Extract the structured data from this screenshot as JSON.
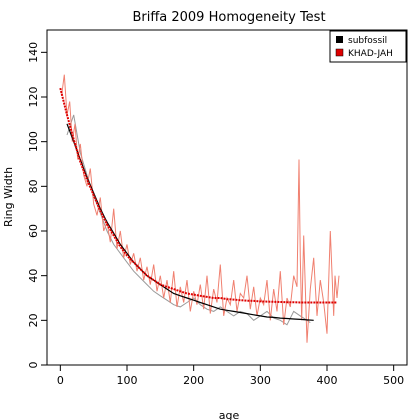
{
  "chart_data": {
    "type": "line",
    "title": "Briffa 2009 Homogeneity Test",
    "xlabel": "age",
    "ylabel": "Ring Width",
    "xlim": [
      -20,
      520
    ],
    "ylim": [
      0,
      150
    ],
    "xticks": [
      0,
      100,
      200,
      300,
      400,
      500
    ],
    "yticks": [
      0,
      20,
      40,
      60,
      80,
      100,
      120,
      140
    ],
    "grid": false,
    "legend": {
      "placement": "top-right"
    },
    "series": [
      {
        "name": "subfossil",
        "color": "#000000",
        "raw_color": "#9a9a9a",
        "raw_x": [
          10,
          20,
          30,
          40,
          50,
          60,
          70,
          80,
          90,
          100,
          110,
          120,
          130,
          140,
          150,
          160,
          170,
          180,
          190,
          200,
          210,
          220,
          230,
          240,
          250,
          260,
          270,
          280,
          290,
          300,
          310,
          320,
          330,
          340,
          350,
          360,
          370,
          375
        ],
        "raw_y": [
          103,
          112,
          95,
          85,
          76,
          68,
          60,
          54,
          50,
          46,
          42,
          39,
          36,
          33,
          31,
          29,
          27,
          26,
          28,
          30,
          27,
          25,
          24,
          26,
          24,
          22,
          24,
          23,
          20,
          22,
          24,
          21,
          20,
          18,
          24,
          22,
          20,
          19
        ],
        "fit_x": [
          10,
          20,
          30,
          40,
          50,
          60,
          70,
          80,
          90,
          100,
          110,
          120,
          130,
          140,
          150,
          160,
          170,
          180,
          190,
          200,
          210,
          220,
          230,
          240,
          250,
          260,
          270,
          280,
          290,
          300,
          310,
          320,
          330,
          340,
          350,
          360,
          370,
          380
        ],
        "fit_y": [
          108,
          100,
          92,
          84,
          77,
          70,
          64,
          59,
          54,
          50,
          46,
          43,
          40,
          38,
          36,
          34,
          32,
          31,
          30,
          29,
          28,
          27,
          26,
          25,
          24.5,
          24,
          23.5,
          23,
          22.5,
          22,
          21.5,
          21.3,
          21,
          20.8,
          20.6,
          20.4,
          20.2,
          20
        ]
      },
      {
        "name": "KHAD-JAH",
        "color": "#dd0000",
        "raw_color": "#f08070",
        "raw_x": [
          2,
          6,
          10,
          14,
          18,
          22,
          26,
          30,
          35,
          40,
          45,
          50,
          55,
          60,
          65,
          70,
          75,
          80,
          85,
          90,
          95,
          100,
          105,
          110,
          115,
          120,
          125,
          130,
          135,
          140,
          145,
          150,
          155,
          160,
          165,
          170,
          175,
          180,
          185,
          190,
          195,
          200,
          205,
          210,
          215,
          220,
          225,
          230,
          235,
          240,
          245,
          250,
          255,
          260,
          265,
          270,
          275,
          280,
          285,
          290,
          295,
          300,
          305,
          310,
          315,
          320,
          325,
          330,
          335,
          340,
          345,
          350,
          355,
          358,
          360,
          362,
          365,
          370,
          375,
          380,
          385,
          390,
          395,
          400,
          405,
          410,
          412,
          415,
          418
        ],
        "raw_y": [
          121,
          130,
          112,
          118,
          100,
          108,
          92,
          99,
          85,
          80,
          88,
          72,
          67,
          75,
          60,
          64,
          55,
          70,
          52,
          60,
          48,
          54,
          45,
          50,
          42,
          48,
          38,
          44,
          36,
          45,
          33,
          40,
          30,
          38,
          28,
          42,
          26,
          35,
          28,
          38,
          24,
          33,
          27,
          36,
          25,
          40,
          23,
          34,
          28,
          45,
          22,
          30,
          27,
          38,
          24,
          32,
          30,
          40,
          25,
          35,
          22,
          30,
          27,
          38,
          20,
          34,
          24,
          42,
          18,
          30,
          26,
          40,
          35,
          92,
          48,
          20,
          58,
          10,
          34,
          48,
          22,
          38,
          28,
          14,
          60,
          22,
          40,
          30,
          40
        ],
        "fit_x": [
          0,
          10,
          20,
          30,
          40,
          50,
          60,
          70,
          80,
          90,
          100,
          110,
          120,
          130,
          140,
          150,
          160,
          170,
          180,
          190,
          200,
          210,
          220,
          230,
          240,
          250,
          260,
          270,
          280,
          290,
          300,
          310,
          320,
          330,
          340,
          350,
          360,
          370,
          380,
          390,
          400,
          410,
          415
        ],
        "fit_y": [
          124,
          112,
          101,
          91,
          83,
          76,
          69,
          63,
          58,
          53,
          49,
          46,
          43,
          40,
          38,
          36,
          35,
          34,
          33,
          32,
          31.5,
          31,
          30.5,
          30,
          30,
          29.5,
          29.3,
          29,
          28.8,
          28.7,
          28.5,
          28.4,
          28.3,
          28.2,
          28.1,
          28.1,
          28,
          28,
          28,
          28,
          28,
          28,
          28
        ]
      }
    ]
  }
}
